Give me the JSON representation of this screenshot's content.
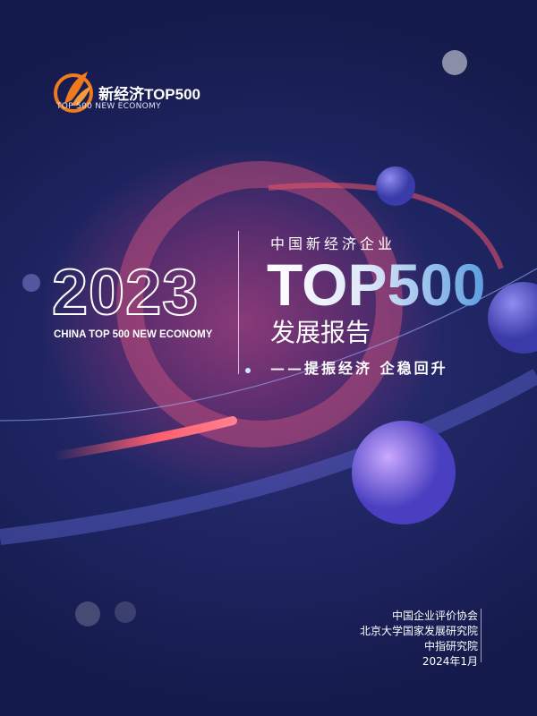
{
  "logo": {
    "name": "新经济TOP500",
    "subtitle": "TOP 500 NEW ECONOMY"
  },
  "cover": {
    "year": "2023",
    "year_subtitle": "CHINA TOP 500 NEW ECONOMY",
    "title_line1": "中国新经济企业",
    "title_line2": "TOP500",
    "title_line3": "发展报告",
    "slogan": "——提振经济  企稳回升"
  },
  "publishers": [
    "中国企业评价协会",
    "北京大学国家发展研究院",
    "中指研究院"
  ],
  "date": "2024年1月",
  "colors": {
    "background": "#1d235e",
    "logo_orange": "#f07a1e",
    "accent_blue": "#5a9ee0"
  }
}
